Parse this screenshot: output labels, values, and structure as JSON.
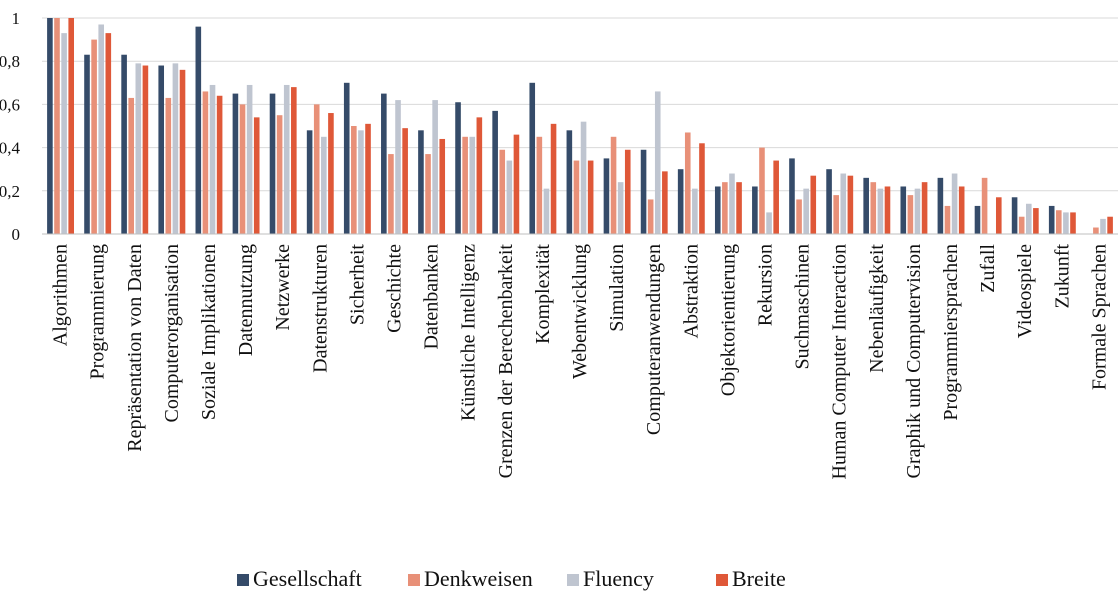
{
  "chart_data": {
    "type": "bar",
    "title": "",
    "xlabel": "",
    "ylabel": "",
    "ylim": [
      0,
      1
    ],
    "yticks": [
      {
        "value": 0,
        "label": "0"
      },
      {
        "value": 0.2,
        "label": "0,2"
      },
      {
        "value": 0.4,
        "label": "0,4"
      },
      {
        "value": 0.6,
        "label": "0,6"
      },
      {
        "value": 0.8,
        "label": "0,8"
      },
      {
        "value": 1,
        "label": "1"
      }
    ],
    "grid": true,
    "legend_position": "bottom",
    "categories": [
      "Algorithmen",
      "Programmierung",
      "Repräsentation von Daten",
      "Computerorganisation",
      "Soziale Implikationen",
      "Datennutzung",
      "Netzwerke",
      "Datenstrukturen",
      "Sicherheit",
      "Geschichte",
      "Datenbanken",
      "Künstliche Intelligenz",
      "Grenzen der Berechenbarkeit",
      "Komplexität",
      "Webentwicklung",
      "Simulation",
      "Computeranwendungen",
      "Abstraktion",
      "Objektorientierung",
      "Rekursion",
      "Suchmaschinen",
      "Human Computer Interaction",
      "Nebenläufigkeit",
      "Graphik und Computervision",
      "Programmiersprachen",
      "Zufall",
      "Videospiele",
      "Zukunft",
      "Formale Sprachen"
    ],
    "series": [
      {
        "name": "Gesellschaft",
        "color": "#354b69",
        "values": [
          1.0,
          0.83,
          0.83,
          0.78,
          0.96,
          0.65,
          0.65,
          0.48,
          0.7,
          0.65,
          0.48,
          0.61,
          0.57,
          0.7,
          0.48,
          0.35,
          0.39,
          0.3,
          0.22,
          0.22,
          0.35,
          0.3,
          0.26,
          0.22,
          0.26,
          0.13,
          0.17,
          0.13,
          0.0
        ]
      },
      {
        "name": "Denkweisen",
        "color": "#e89078",
        "values": [
          1.0,
          0.9,
          0.63,
          0.63,
          0.66,
          0.6,
          0.55,
          0.6,
          0.5,
          0.37,
          0.37,
          0.45,
          0.39,
          0.45,
          0.34,
          0.45,
          0.16,
          0.47,
          0.24,
          0.4,
          0.16,
          0.18,
          0.24,
          0.18,
          0.13,
          0.26,
          0.08,
          0.11,
          0.03
        ]
      },
      {
        "name": "Fluency",
        "color": "#bfc5d0",
        "values": [
          0.93,
          0.97,
          0.79,
          0.79,
          0.69,
          0.69,
          0.69,
          0.45,
          0.48,
          0.62,
          0.62,
          0.45,
          0.34,
          0.21,
          0.52,
          0.24,
          0.66,
          0.21,
          0.28,
          0.1,
          0.21,
          0.28,
          0.21,
          0.21,
          0.28,
          0.0,
          0.14,
          0.1,
          0.07
        ]
      },
      {
        "name": "Breite",
        "color": "#df5838",
        "values": [
          1.0,
          0.93,
          0.78,
          0.76,
          0.64,
          0.54,
          0.68,
          0.56,
          0.51,
          0.49,
          0.44,
          0.54,
          0.46,
          0.51,
          0.34,
          0.39,
          0.29,
          0.42,
          0.24,
          0.34,
          0.27,
          0.27,
          0.22,
          0.24,
          0.22,
          0.17,
          0.12,
          0.1,
          0.08
        ]
      }
    ]
  }
}
